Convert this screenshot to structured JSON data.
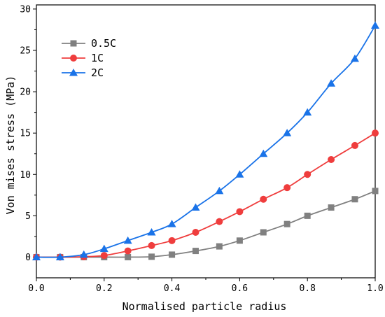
{
  "chart_data": {
    "type": "line",
    "title": "",
    "xlabel": "Normalised particle radius",
    "ylabel": "Von mises stress (MPa)",
    "xlim": [
      0.0,
      1.0
    ],
    "ylim": [
      -2.5,
      30.5
    ],
    "xticks": [
      "0.0",
      "0.2",
      "0.4",
      "0.6",
      "0.8",
      "1.0"
    ],
    "xtick_values": [
      0.0,
      0.2,
      0.4,
      0.6,
      0.8,
      1.0
    ],
    "yticks": [
      "0",
      "5",
      "10",
      "15",
      "20",
      "25",
      "30"
    ],
    "ytick_values": [
      0,
      5,
      10,
      15,
      20,
      25,
      30
    ],
    "grid": false,
    "legend_position": "top-left",
    "series": [
      {
        "name": "0.5C",
        "color": "#808080",
        "marker": "square",
        "x": [
          0.0,
          0.07,
          0.14,
          0.2,
          0.27,
          0.34,
          0.4,
          0.47,
          0.54,
          0.6,
          0.67,
          0.74,
          0.8,
          0.87,
          0.94,
          1.0
        ],
        "y": [
          0,
          0,
          0,
          0,
          0,
          0.05,
          0.3,
          0.75,
          1.3,
          2.0,
          3.0,
          4.0,
          5.0,
          6.0,
          7.0,
          8.0
        ]
      },
      {
        "name": "1C",
        "color": "#ef3d3d",
        "marker": "circle",
        "x": [
          0.0,
          0.07,
          0.14,
          0.2,
          0.27,
          0.34,
          0.4,
          0.47,
          0.54,
          0.6,
          0.67,
          0.74,
          0.8,
          0.87,
          0.94,
          1.0
        ],
        "y": [
          0,
          0,
          0.05,
          0.2,
          0.75,
          1.4,
          2.0,
          3.0,
          4.3,
          5.5,
          7.0,
          8.4,
          10.0,
          11.8,
          13.5,
          15.0
        ]
      },
      {
        "name": "2C",
        "color": "#1a73e8",
        "marker": "triangle",
        "x": [
          0.0,
          0.07,
          0.14,
          0.2,
          0.27,
          0.34,
          0.4,
          0.47,
          0.54,
          0.6,
          0.67,
          0.74,
          0.8,
          0.87,
          0.94,
          1.0
        ],
        "y": [
          0,
          0,
          0.3,
          1.0,
          2.0,
          3.0,
          4.0,
          6.0,
          8.0,
          10.0,
          12.5,
          15.0,
          17.5,
          21.0,
          24.0,
          28.0
        ]
      }
    ]
  }
}
